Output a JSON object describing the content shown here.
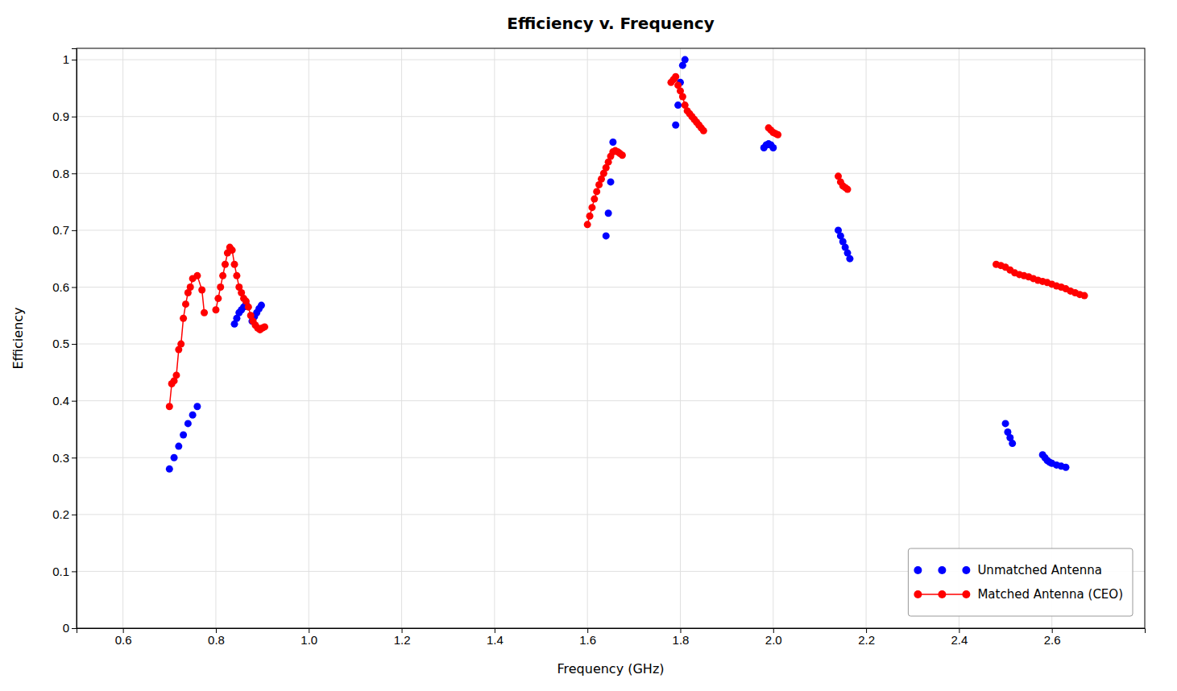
{
  "chart_data": {
    "type": "line",
    "title": "Efficiency v. Frequency",
    "xlabel": "Frequency (GHz)",
    "ylabel": "Efficiency",
    "xlim": [
      0.5,
      2.8
    ],
    "ylim": [
      0.0,
      1.02
    ],
    "xticks": [
      0.6,
      0.8,
      {
        "value": 1.0,
        "label": "1.0"
      },
      1.2,
      1.4,
      1.6,
      1.8,
      {
        "value": 2.0,
        "label": "2.0"
      },
      2.2,
      2.4,
      2.6
    ],
    "yticks": [
      0,
      0.1,
      0.2,
      0.3,
      0.4,
      0.5,
      0.6,
      0.7,
      0.8,
      0.9,
      1
    ],
    "grid": true,
    "legend": "lower right",
    "series": [
      {
        "name": "Unmatched Antenna",
        "type": "scatter",
        "marker": "circle",
        "color": "#0000FF",
        "x": [
          0.7,
          0.71,
          0.72,
          0.73,
          0.74,
          0.75,
          0.76,
          0.84,
          0.845,
          0.85,
          0.855,
          0.86,
          0.865,
          0.878,
          0.883,
          0.888,
          0.893,
          0.898,
          1.64,
          1.645,
          1.65,
          1.655,
          1.79,
          1.795,
          1.8,
          1.805,
          1.81,
          1.98,
          1.985,
          1.99,
          1.995,
          2.0,
          2.14,
          2.145,
          2.15,
          2.155,
          2.16,
          2.165,
          2.5,
          2.505,
          2.51,
          2.515,
          2.58,
          2.585,
          2.59,
          2.595,
          2.6,
          2.61,
          2.62,
          2.63
        ],
        "values": [
          0.28,
          0.3,
          0.32,
          0.34,
          0.36,
          0.375,
          0.39,
          0.535,
          0.545,
          0.555,
          0.56,
          0.565,
          0.57,
          0.54,
          0.548,
          0.555,
          0.562,
          0.568,
          0.69,
          0.73,
          0.785,
          0.855,
          0.885,
          0.92,
          0.96,
          0.99,
          1.0,
          0.845,
          0.85,
          0.852,
          0.85,
          0.845,
          0.7,
          0.69,
          0.68,
          0.67,
          0.66,
          0.65,
          0.36,
          0.345,
          0.335,
          0.325,
          0.305,
          0.3,
          0.295,
          0.292,
          0.29,
          0.287,
          0.285,
          0.283
        ]
      },
      {
        "name": "Matched Antenna (CEO)",
        "type": "line",
        "marker": "circle",
        "color": "#FF0000",
        "x": [
          0.7,
          0.705,
          0.71,
          0.715,
          0.72,
          0.725,
          0.73,
          0.735,
          0.74,
          0.745,
          0.75,
          0.76,
          0.77,
          0.775,
          null,
          0.8,
          0.805,
          0.81,
          0.815,
          0.82,
          0.825,
          0.83,
          0.835,
          0.84,
          0.845,
          0.85,
          0.855,
          0.86,
          0.865,
          0.87,
          0.875,
          0.88,
          0.885,
          0.89,
          0.895,
          0.9,
          0.905,
          null,
          1.6,
          1.605,
          1.61,
          1.615,
          1.62,
          1.625,
          1.63,
          1.635,
          1.64,
          1.645,
          1.65,
          1.655,
          1.66,
          1.665,
          1.67,
          1.675,
          null,
          1.78,
          1.785,
          1.79,
          1.795,
          1.8,
          1.805,
          1.81,
          1.815,
          1.82,
          1.825,
          1.83,
          1.835,
          1.84,
          1.845,
          1.85,
          null,
          1.99,
          1.995,
          2.0,
          2.005,
          2.01,
          null,
          2.14,
          2.145,
          2.15,
          2.155,
          2.16,
          null,
          2.48,
          2.49,
          2.5,
          2.51,
          2.52,
          2.53,
          2.54,
          2.55,
          2.56,
          2.57,
          2.58,
          2.59,
          2.6,
          2.61,
          2.62,
          2.63,
          2.64,
          2.65,
          2.66,
          2.67
        ],
        "values": [
          0.39,
          0.43,
          0.435,
          0.445,
          0.49,
          0.5,
          0.545,
          0.57,
          0.59,
          0.6,
          0.615,
          0.62,
          0.595,
          0.555,
          null,
          0.56,
          0.58,
          0.6,
          0.62,
          0.64,
          0.66,
          0.67,
          0.665,
          0.64,
          0.62,
          0.6,
          0.59,
          0.58,
          0.575,
          0.565,
          0.55,
          0.54,
          0.533,
          0.528,
          0.525,
          0.528,
          0.53,
          null,
          0.71,
          0.725,
          0.74,
          0.755,
          0.768,
          0.78,
          0.79,
          0.8,
          0.81,
          0.82,
          0.83,
          0.838,
          0.84,
          0.838,
          0.835,
          0.832,
          null,
          0.96,
          0.965,
          0.97,
          0.955,
          0.945,
          0.935,
          0.92,
          0.91,
          0.905,
          0.9,
          0.895,
          0.89,
          0.885,
          0.88,
          0.875,
          null,
          0.88,
          0.876,
          0.872,
          0.87,
          0.868,
          null,
          0.795,
          0.785,
          0.778,
          0.775,
          0.772,
          null,
          0.64,
          0.638,
          0.635,
          0.63,
          0.625,
          0.622,
          0.62,
          0.618,
          0.615,
          0.612,
          0.61,
          0.608,
          0.605,
          0.602,
          0.6,
          0.597,
          0.593,
          0.59,
          0.587,
          0.585
        ]
      }
    ]
  }
}
